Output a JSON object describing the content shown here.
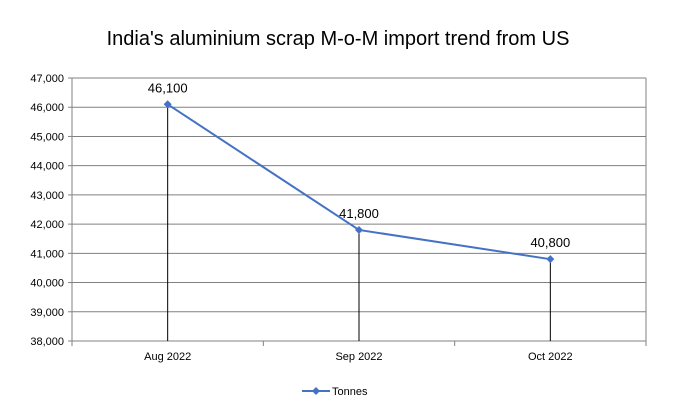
{
  "chart_data": {
    "type": "line",
    "title": "India's aluminium scrap M-o-M import trend from US",
    "xlabel": "",
    "ylabel": "",
    "categories": [
      "Aug 2022",
      "Sep 2022",
      "Oct 2022"
    ],
    "series": [
      {
        "name": "Tonnes",
        "values": [
          46100,
          41800,
          40800
        ],
        "labels": [
          "46,100",
          "41,800",
          "40,800"
        ]
      }
    ],
    "ylim": [
      38000,
      47000
    ],
    "ytick_step": 1000,
    "ytick_labels": [
      "38,000",
      "39,000",
      "40,000",
      "41,000",
      "42,000",
      "43,000",
      "44,000",
      "45,000",
      "46,000",
      "47,000"
    ],
    "grid": true,
    "drop_lines": true,
    "legend_position": "bottom",
    "colors": {
      "series": "#4472C4",
      "grid": "#808080",
      "axis": "#808080",
      "drop_line": "#000000"
    }
  }
}
